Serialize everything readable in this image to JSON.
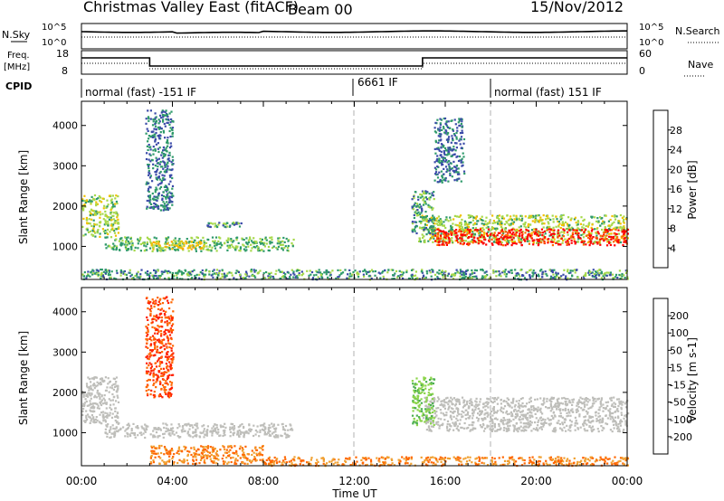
{
  "header": {
    "title": "Christmas Valley East (fitACF)",
    "beam": "Beam 00",
    "date": "15/Nov/2012"
  },
  "top_panels": {
    "nsky": {
      "label": "N.Sky",
      "ticks_left": [
        "10^5",
        "10^0"
      ],
      "right_label": "N.Search",
      "ticks_right": [
        "10^5",
        "10^0"
      ]
    },
    "freq": {
      "label_line1": "Freq.",
      "label_line2": "[MHz]",
      "ticks_left": [
        "18",
        "8"
      ],
      "right_label": "Nave",
      "ticks_right": [
        "60",
        "0"
      ]
    },
    "cpid": {
      "label": "CPID",
      "segments": [
        {
          "text": "normal (fast) -151 IF",
          "start_hour": 0
        },
        {
          "text": "6661 IF",
          "start_hour": 12
        },
        {
          "text": "normal (fast) 151 IF",
          "start_hour": 18
        }
      ]
    }
  },
  "power_colorbar": {
    "label": "Power [dB]",
    "ticks": [
      "28",
      "24",
      "20",
      "16",
      "12",
      "8",
      "4"
    ],
    "colors": [
      "#ff0000",
      "#ff6600",
      "#ffa500",
      "#f0c000",
      "#a6d84a",
      "#2e9a6a",
      "#3a4aa8",
      "#0022ff"
    ]
  },
  "velocity_colorbar": {
    "label": "Velocity [m s-1]",
    "ticks": [
      "200",
      "100",
      "50",
      "15",
      "-15",
      "-50",
      "-100",
      "-200"
    ],
    "colors": [
      "#1530d8",
      "#2e8a5a",
      "#4caf50",
      "#8bd44a",
      "#bebeba",
      "#f0a030",
      "#ff6600",
      "#ff2200",
      "#ff0000"
    ]
  },
  "chart_data": [
    {
      "type": "heatmap",
      "title": "Christmas Valley East (fitACF) Beam 00 15/Nov/2012",
      "variable": "power",
      "xlabel": "",
      "ylabel": "Slant Range [km]",
      "x_ticks": [
        "00:00",
        "04:00",
        "08:00",
        "12:00",
        "16:00",
        "20:00",
        "00:00"
      ],
      "x_range_hours": [
        0,
        24
      ],
      "y_ticks": [
        1000,
        2000,
        3000,
        4000
      ],
      "y_range_km": [
        180,
        4600
      ],
      "bands": [
        {
          "t0": 0.0,
          "t1": 1.6,
          "r0": 1250,
          "r1": 2300,
          "level": 12
        },
        {
          "t0": 1.0,
          "t1": 9.3,
          "r0": 900,
          "r1": 1250,
          "level": 10
        },
        {
          "t0": 3.0,
          "t1": 5.5,
          "r0": 950,
          "r1": 1150,
          "level": 16
        },
        {
          "t0": 2.8,
          "t1": 4.0,
          "r0": 1900,
          "r1": 4400,
          "level": 6
        },
        {
          "t0": 5.5,
          "t1": 7.0,
          "r0": 1500,
          "r1": 1620,
          "level": 8
        },
        {
          "t0": 0.0,
          "t1": 24.0,
          "r0": 200,
          "r1": 450,
          "level": 8
        },
        {
          "t0": 14.8,
          "t1": 24.0,
          "r0": 1100,
          "r1": 1800,
          "level": 12
        },
        {
          "t0": 15.5,
          "t1": 24.0,
          "r0": 1050,
          "r1": 1450,
          "level": 28
        },
        {
          "t0": 14.5,
          "t1": 15.5,
          "r0": 1300,
          "r1": 2400,
          "level": 8
        },
        {
          "t0": 15.5,
          "t1": 16.8,
          "r0": 2600,
          "r1": 4200,
          "level": 6
        }
      ]
    },
    {
      "type": "heatmap",
      "variable": "velocity",
      "xlabel": "Time UT",
      "ylabel": "Slant Range [km]",
      "x_ticks": [
        "00:00",
        "04:00",
        "08:00",
        "12:00",
        "16:00",
        "20:00",
        "00:00"
      ],
      "x_range_hours": [
        0,
        24
      ],
      "y_ticks": [
        1000,
        2000,
        3000,
        4000
      ],
      "y_range_km": [
        180,
        4600
      ],
      "bands": [
        {
          "t0": 0.0,
          "t1": 1.6,
          "r0": 1250,
          "r1": 2400,
          "level": 0
        },
        {
          "t0": 1.0,
          "t1": 9.3,
          "r0": 900,
          "r1": 1250,
          "level": 0
        },
        {
          "t0": 3.0,
          "t1": 8.0,
          "r0": 250,
          "r1": 700,
          "level": -50
        },
        {
          "t0": 8.0,
          "t1": 24.0,
          "r0": 200,
          "r1": 420,
          "level": -50
        },
        {
          "t0": 15.0,
          "t1": 24.0,
          "r0": 1050,
          "r1": 1900,
          "level": 0
        },
        {
          "t0": 14.5,
          "t1": 15.5,
          "r0": 1200,
          "r1": 2400,
          "level": 30
        },
        {
          "t0": 2.8,
          "t1": 4.0,
          "r0": 1900,
          "r1": 4400,
          "level": -100
        }
      ]
    }
  ]
}
